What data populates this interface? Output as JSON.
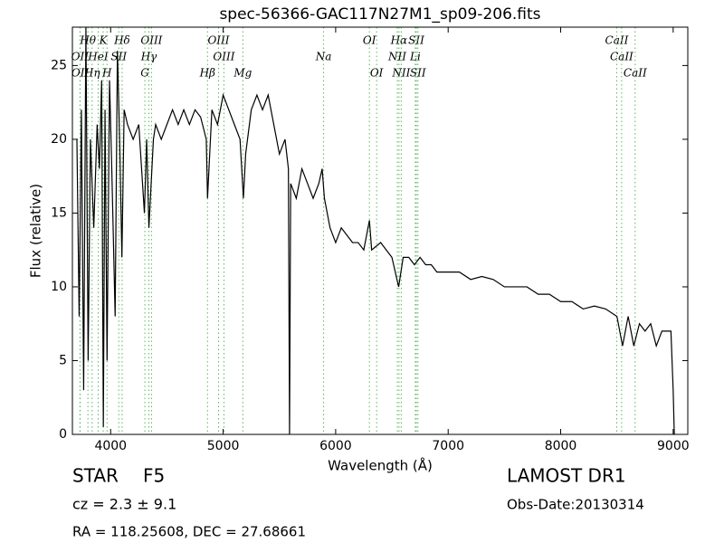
{
  "chart_data": {
    "type": "line",
    "title": "spec-56366-GAC117N27M1_sp09-206.fits",
    "x_label": "Wavelength (Å)",
    "y_label": "Flux (relative)",
    "xlim": [
      3660,
      9130
    ],
    "ylim": [
      0,
      27.6
    ],
    "xticks": [
      4000,
      5000,
      6000,
      7000,
      8000,
      9000
    ],
    "yticks": [
      0,
      5,
      10,
      15,
      20,
      25
    ],
    "line_color": "#5cb85c",
    "annotation_rows": [
      [
        {
          "label": "Hθ",
          "x": 3798
        },
        {
          "label": "K",
          "x": 3934
        },
        {
          "label": "Hδ",
          "x": 4102
        },
        {
          "label": "OIII",
          "x": 4363
        },
        {
          "label": "OIII",
          "x": 4959
        },
        {
          "label": "OI",
          "x": 6300
        },
        {
          "label": "Hα",
          "x": 6563
        },
        {
          "label": "SII",
          "x": 6717
        },
        {
          "label": "CaII",
          "x": 8498
        }
      ],
      [
        {
          "label": "OII",
          "x": 3727
        },
        {
          "label": "HeI",
          "x": 3889
        },
        {
          "label": "SII",
          "x": 4072
        },
        {
          "label": "Hγ",
          "x": 4340
        },
        {
          "label": "OIII",
          "x": 5007
        },
        {
          "label": "Na",
          "x": 5893
        },
        {
          "label": "NII",
          "x": 6548
        },
        {
          "label": "Li",
          "x": 6708
        },
        {
          "label": "CaII",
          "x": 8542
        }
      ],
      [
        {
          "label": "OII",
          "x": 3729
        },
        {
          "label": "Hη",
          "x": 3835
        },
        {
          "label": "H",
          "x": 3968
        },
        {
          "label": "G",
          "x": 4304
        },
        {
          "label": "Hβ",
          "x": 4861
        },
        {
          "label": "Mg",
          "x": 5175
        },
        {
          "label": "OI",
          "x": 6364
        },
        {
          "label": "NII",
          "x": 6583
        },
        {
          "label": "SII",
          "x": 6731
        },
        {
          "label": "CaII",
          "x": 8662
        }
      ]
    ],
    "series": [
      {
        "name": "flux",
        "color": "#000000",
        "x": [
          3700,
          3720,
          3740,
          3760,
          3780,
          3800,
          3820,
          3850,
          3880,
          3900,
          3920,
          3935,
          3950,
          3968,
          3990,
          4010,
          4040,
          4060,
          4080,
          4100,
          4120,
          4150,
          4200,
          4250,
          4300,
          4320,
          4340,
          4380,
          4400,
          4450,
          4500,
          4550,
          4600,
          4650,
          4700,
          4750,
          4800,
          4850,
          4861,
          4900,
          4950,
          5000,
          5050,
          5100,
          5150,
          5180,
          5200,
          5250,
          5300,
          5350,
          5400,
          5450,
          5500,
          5550,
          5580,
          5590,
          5600,
          5650,
          5700,
          5750,
          5800,
          5850,
          5880,
          5900,
          5950,
          6000,
          6050,
          6100,
          6150,
          6200,
          6250,
          6300,
          6320,
          6400,
          6450,
          6500,
          6560,
          6580,
          6600,
          6650,
          6700,
          6750,
          6800,
          6850,
          6900,
          7000,
          7100,
          7200,
          7300,
          7400,
          7500,
          7600,
          7700,
          7800,
          7900,
          8000,
          8100,
          8200,
          8300,
          8400,
          8500,
          8550,
          8600,
          8650,
          8700,
          8750,
          8800,
          8850,
          8900,
          8950,
          8980,
          9000,
          9010
        ],
        "values": [
          20,
          8,
          22,
          3,
          27.6,
          5,
          20,
          14,
          21,
          18,
          24,
          0.5,
          22,
          5,
          24,
          18,
          8,
          26,
          20,
          12,
          22,
          21,
          20,
          21,
          15,
          20,
          14,
          20,
          21,
          20,
          21,
          22,
          21,
          22,
          21,
          22,
          21.5,
          20,
          16,
          22,
          21,
          23,
          22,
          21,
          20,
          16,
          19,
          22,
          23,
          22,
          23,
          21,
          19,
          20,
          18,
          0,
          17,
          16,
          18,
          17,
          16,
          17,
          18,
          16,
          14,
          13,
          14,
          13.5,
          13,
          13,
          12.5,
          14.5,
          12.5,
          13,
          12.5,
          12,
          10,
          11,
          12,
          12,
          11.5,
          12,
          11.5,
          11.5,
          11,
          11,
          11,
          10.5,
          10.7,
          10.5,
          10,
          10,
          10,
          9.5,
          9.5,
          9,
          9,
          8.5,
          8.7,
          8.5,
          8,
          6,
          8,
          6,
          7.5,
          7,
          7.5,
          6,
          7,
          7,
          7,
          3,
          0
        ]
      }
    ]
  },
  "info": {
    "object_class": "STAR",
    "subclass": "F5",
    "survey": "LAMOST DR1",
    "redshift": "cz = 2.3 ± 9.1",
    "obs_date": "Obs-Date:20130314",
    "coords": "RA = 118.25608, DEC = 27.68661"
  }
}
